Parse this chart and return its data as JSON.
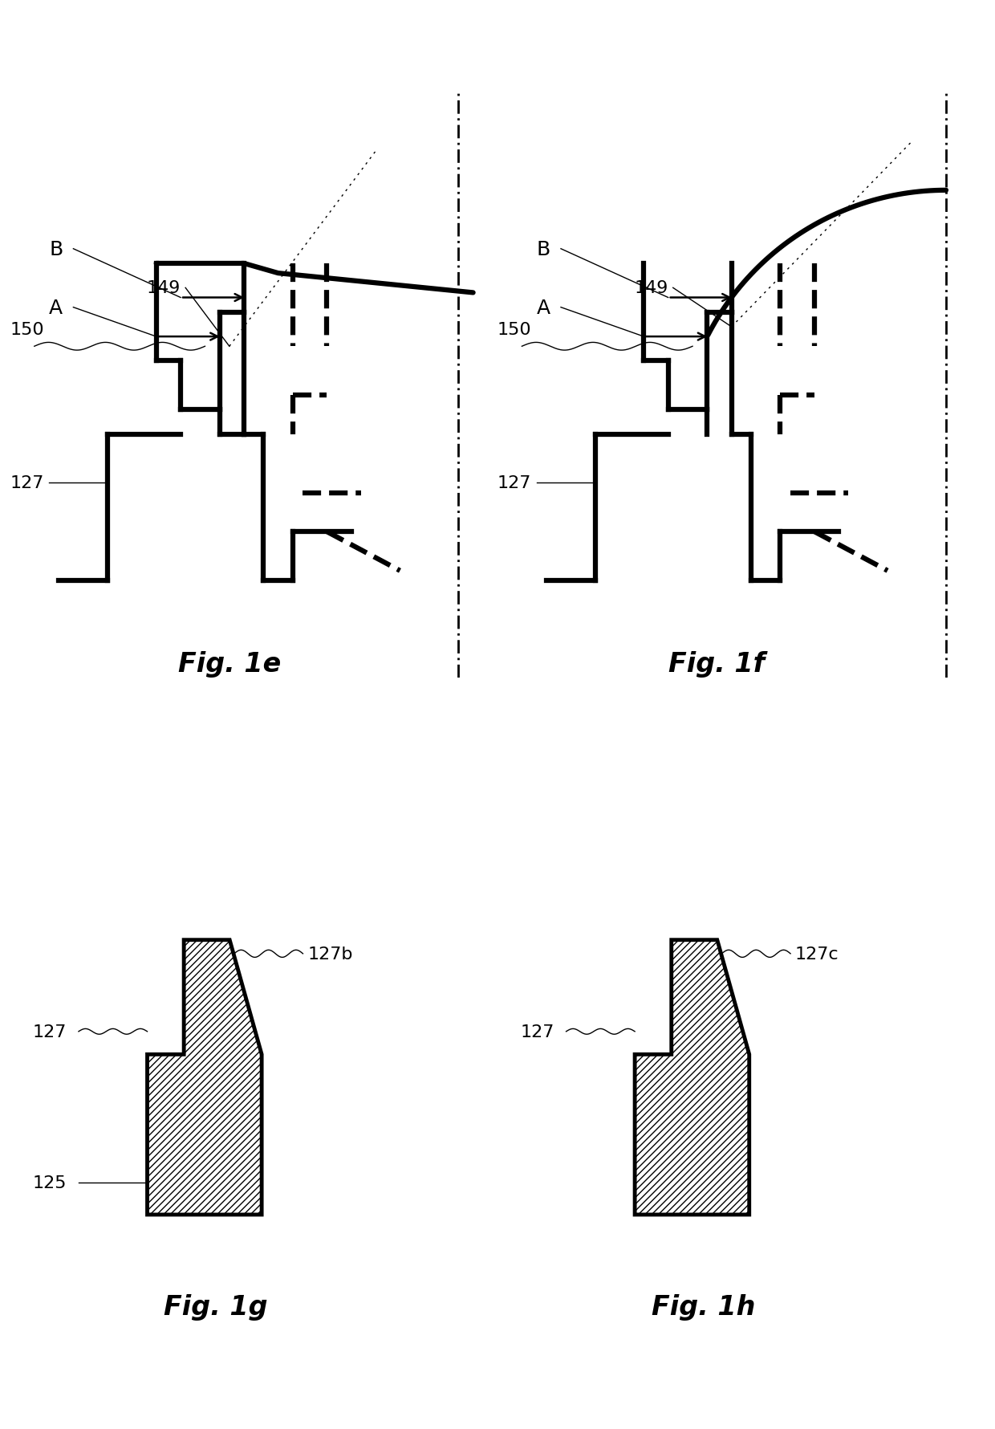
{
  "fig_labels": [
    "Fig. 1e",
    "Fig. 1f",
    "Fig. 1g",
    "Fig. 1h"
  ],
  "background_color": "#ffffff",
  "line_color": "#000000",
  "thick_lw": 4.5,
  "thin_lw": 1.0,
  "dashed_lw": 4.5,
  "label_fontsize": 16,
  "fig_label_fontsize": 24,
  "annotation_fontsize": 16
}
